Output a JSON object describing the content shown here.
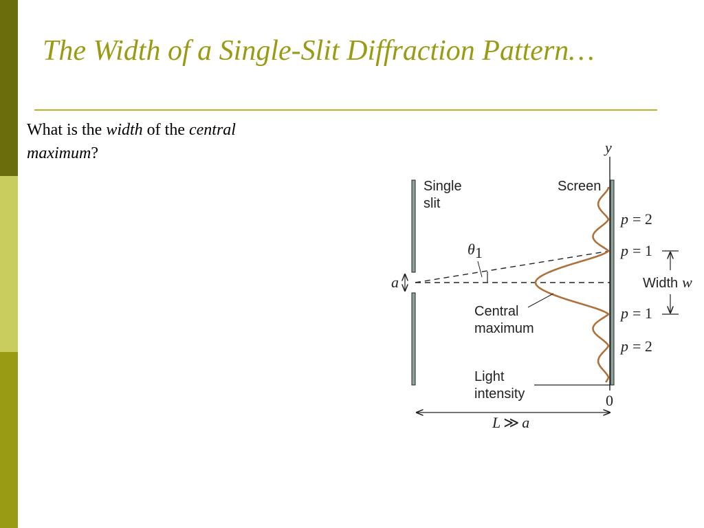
{
  "slide": {
    "title": "The Width of a Single-Slit Diffraction Pattern…",
    "question": {
      "part1": "What is the ",
      "em1": "width",
      "part2": " of the ",
      "em2": "central",
      "em3": "maximum",
      "part3": "?"
    }
  },
  "colors": {
    "title": "#9a9b14",
    "rule": "#b5b52a",
    "bar_dark": "#6b6c0c",
    "bar_light": "#c9cd5e",
    "bar_olive": "#9a9b14",
    "intensity_curve": "#b0703a",
    "slit_fill": "#8fa39a"
  },
  "diagram": {
    "labels": {
      "single_slit_1": "Single",
      "single_slit_2": "slit",
      "screen": "Screen",
      "y_axis": "y",
      "theta": "θ",
      "theta_sub": "1",
      "slit_width": "a",
      "p2_top": "= 2",
      "p1_top": "= 1",
      "p1_bottom": "= 1",
      "p2_bottom": "= 2",
      "p_symbol": "p",
      "width_word": "Width",
      "width_sym": "w",
      "central_max_1": "Central",
      "central_max_2": "maximum",
      "light_1": "Light",
      "light_2": "intensity",
      "origin": "0",
      "distance_L": "L",
      "distance_rel": "≫",
      "distance_a": "a"
    }
  }
}
